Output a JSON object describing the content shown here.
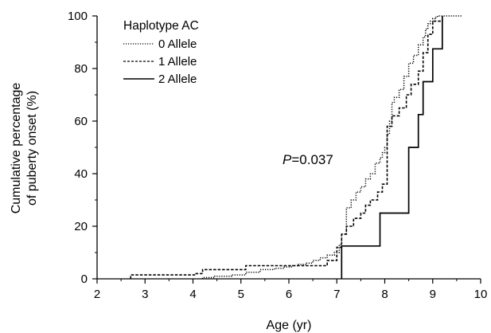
{
  "chart_data": {
    "type": "line",
    "step": true,
    "xlabel": "Age (yr)",
    "ylabel": [
      "Cumulative percentage",
      "of puberty onset (%)"
    ],
    "xlim": [
      2,
      10
    ],
    "ylim": [
      0,
      100
    ],
    "xticks": [
      2,
      3,
      4,
      5,
      6,
      7,
      8,
      9,
      10
    ],
    "yticks": [
      0,
      20,
      40,
      60,
      80,
      100
    ],
    "grid": false,
    "legend": {
      "title": "Haplotype AC",
      "placement": "top-left"
    },
    "annotation": {
      "italic": "P",
      "text": "=0.037"
    },
    "series": [
      {
        "name": "0 Allele",
        "style": "dotted",
        "x": [
          4.2,
          4.45,
          4.8,
          5.1,
          5.4,
          5.7,
          5.9,
          6.05,
          6.2,
          6.35,
          6.5,
          6.65,
          6.8,
          6.95,
          7.05,
          7.1,
          7.2,
          7.3,
          7.4,
          7.5,
          7.6,
          7.7,
          7.8,
          7.9,
          7.95,
          8.0,
          8.05,
          8.1,
          8.15,
          8.2,
          8.3,
          8.4,
          8.5,
          8.6,
          8.7,
          8.8,
          8.85,
          8.9,
          8.95,
          9.0,
          9.05,
          9.1,
          9.2,
          9.6
        ],
        "y": [
          0.5,
          1,
          1.5,
          2.5,
          3.5,
          4,
          4.5,
          5,
          5.5,
          6,
          7,
          8,
          9,
          10,
          13,
          17,
          27,
          30,
          33,
          35,
          38,
          40,
          44,
          46,
          48,
          50,
          55,
          60,
          67,
          69,
          72,
          77,
          82,
          85,
          89,
          92,
          95,
          97,
          98,
          99,
          99.5,
          100,
          100,
          100
        ]
      },
      {
        "name": "1 Allele",
        "style": "dashed",
        "x": [
          2.7,
          4.05,
          4.2,
          5.1,
          6.8,
          7.0,
          7.1,
          7.2,
          7.35,
          7.5,
          7.6,
          7.7,
          7.85,
          7.95,
          8.05,
          8.15,
          8.3,
          8.45,
          8.55,
          8.7,
          8.8,
          8.9,
          9.0,
          9.2
        ],
        "y": [
          1.5,
          2,
          3.5,
          5,
          7,
          12,
          17,
          20,
          23,
          25,
          28,
          30,
          33,
          36,
          58,
          62,
          65,
          70,
          74,
          79,
          86,
          93,
          98,
          100
        ]
      },
      {
        "name": "2 Allele",
        "style": "solid",
        "x": [
          7.1,
          7.9,
          8.5,
          8.7,
          8.8,
          9.0,
          9.2
        ],
        "y": [
          12.5,
          25,
          50,
          62.5,
          75,
          87.5,
          100
        ]
      }
    ]
  }
}
